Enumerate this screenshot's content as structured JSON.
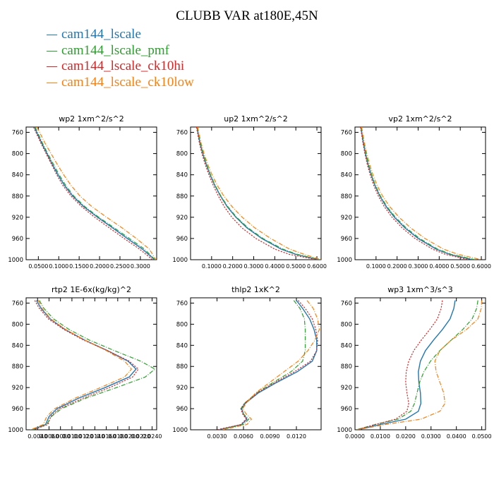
{
  "figure_title": "CLUBB VAR at180E,45N",
  "legend": [
    {
      "label": "cam144_lscale",
      "color": "#1f77b4"
    },
    {
      "label": "cam144_lscale_pmf",
      "color": "#2ca02c"
    },
    {
      "label": "cam144_lscale_ck10hi",
      "color": "#d62728"
    },
    {
      "label": "cam144_lscale_ck10low",
      "color": "#ff7f0e"
    }
  ],
  "chart_data": [
    {
      "type": "line",
      "title": "wp2  1xm^2/s^2",
      "xlim": [
        0.02,
        0.34
      ],
      "ylim": [
        1000,
        750
      ],
      "y_reversed": true,
      "x_ticks": [
        0.05,
        0.1,
        0.15,
        0.2,
        0.25,
        0.3
      ],
      "x_tick_labels": [
        "0.0500",
        "0.1000",
        "0.1500",
        "0.2000",
        "0.2500",
        "0.3000"
      ],
      "y_ticks": [
        760,
        800,
        840,
        880,
        920,
        960,
        1000
      ],
      "y_tick_labels": [
        "760",
        "800",
        "840",
        "880",
        "920",
        "960",
        "1000"
      ],
      "y": [
        750,
        760,
        780,
        800,
        820,
        840,
        860,
        880,
        900,
        920,
        940,
        960,
        980,
        1000
      ],
      "series": [
        {
          "name": "cam144_lscale",
          "x": [
            0.04,
            0.046,
            0.058,
            0.071,
            0.084,
            0.098,
            0.114,
            0.134,
            0.161,
            0.195,
            0.232,
            0.268,
            0.305,
            0.335
          ]
        },
        {
          "name": "cam144_lscale_pmf",
          "x": [
            0.042,
            0.048,
            0.06,
            0.073,
            0.087,
            0.101,
            0.117,
            0.137,
            0.164,
            0.198,
            0.236,
            0.273,
            0.31,
            0.336
          ]
        },
        {
          "name": "cam144_lscale_ck10hi",
          "x": [
            0.038,
            0.044,
            0.056,
            0.069,
            0.082,
            0.095,
            0.11,
            0.13,
            0.156,
            0.188,
            0.224,
            0.26,
            0.298,
            0.33
          ]
        },
        {
          "name": "cam144_lscale_ck10low",
          "x": [
            0.046,
            0.053,
            0.066,
            0.081,
            0.096,
            0.112,
            0.13,
            0.152,
            0.181,
            0.217,
            0.255,
            0.29,
            0.322,
            0.338
          ]
        }
      ]
    },
    {
      "type": "line",
      "title": "up2  1xm^2/s^2",
      "xlim": [
        0.0,
        0.62
      ],
      "ylim": [
        1000,
        750
      ],
      "y_reversed": true,
      "x_ticks": [
        0.1,
        0.2,
        0.3,
        0.4,
        0.5,
        0.6
      ],
      "x_tick_labels": [
        "0.1000",
        "0.2000",
        "0.3000",
        "0.4000",
        "0.5000",
        "0.6000"
      ],
      "y_ticks": [
        760,
        800,
        840,
        880,
        920,
        960,
        1000
      ],
      "y_tick_labels": [
        "760",
        "800",
        "840",
        "880",
        "920",
        "960",
        "1000"
      ],
      "y": [
        750,
        760,
        780,
        800,
        820,
        840,
        860,
        880,
        900,
        920,
        940,
        960,
        980,
        990,
        1000
      ],
      "series": [
        {
          "name": "cam144_lscale",
          "x": [
            0.03,
            0.035,
            0.045,
            0.058,
            0.074,
            0.093,
            0.115,
            0.142,
            0.174,
            0.215,
            0.268,
            0.338,
            0.43,
            0.5,
            0.61
          ]
        },
        {
          "name": "cam144_lscale_pmf",
          "x": [
            0.032,
            0.037,
            0.047,
            0.06,
            0.076,
            0.095,
            0.117,
            0.144,
            0.177,
            0.219,
            0.273,
            0.344,
            0.438,
            0.508,
            0.615
          ]
        },
        {
          "name": "cam144_lscale_ck10hi",
          "x": [
            0.028,
            0.033,
            0.042,
            0.054,
            0.069,
            0.087,
            0.108,
            0.132,
            0.16,
            0.196,
            0.244,
            0.31,
            0.4,
            0.47,
            0.6
          ]
        },
        {
          "name": "cam144_lscale_ck10low",
          "x": [
            0.034,
            0.039,
            0.05,
            0.064,
            0.081,
            0.102,
            0.127,
            0.158,
            0.197,
            0.245,
            0.305,
            0.38,
            0.47,
            0.54,
            0.62
          ]
        }
      ]
    },
    {
      "type": "line",
      "title": "vp2  1xm^2/s^2",
      "xlim": [
        0.0,
        0.62
      ],
      "ylim": [
        1000,
        750
      ],
      "y_reversed": true,
      "x_ticks": [
        0.1,
        0.2,
        0.3,
        0.4,
        0.5,
        0.6
      ],
      "x_tick_labels": [
        "0.1000",
        "0.2000",
        "0.3000",
        "0.4000",
        "0.5000",
        "0.6000"
      ],
      "y_ticks": [
        760,
        800,
        840,
        880,
        920,
        960,
        1000
      ],
      "y_tick_labels": [
        "760",
        "800",
        "840",
        "880",
        "920",
        "960",
        "1000"
      ],
      "y": [
        750,
        760,
        780,
        800,
        820,
        840,
        860,
        880,
        900,
        920,
        940,
        960,
        980,
        990,
        1000
      ],
      "series": [
        {
          "name": "cam144_lscale",
          "x": [
            0.028,
            0.032,
            0.04,
            0.05,
            0.062,
            0.077,
            0.095,
            0.118,
            0.148,
            0.187,
            0.237,
            0.3,
            0.385,
            0.45,
            0.56
          ]
        },
        {
          "name": "cam144_lscale_pmf",
          "x": [
            0.03,
            0.034,
            0.042,
            0.052,
            0.064,
            0.079,
            0.097,
            0.121,
            0.152,
            0.192,
            0.243,
            0.307,
            0.392,
            0.458,
            0.57
          ]
        },
        {
          "name": "cam144_lscale_ck10hi",
          "x": [
            0.026,
            0.03,
            0.038,
            0.047,
            0.058,
            0.072,
            0.089,
            0.111,
            0.139,
            0.176,
            0.224,
            0.285,
            0.368,
            0.43,
            0.54
          ]
        },
        {
          "name": "cam144_lscale_ck10low",
          "x": [
            0.032,
            0.036,
            0.045,
            0.056,
            0.069,
            0.085,
            0.105,
            0.131,
            0.165,
            0.209,
            0.264,
            0.332,
            0.42,
            0.49,
            0.6
          ]
        }
      ]
    },
    {
      "type": "line",
      "title": "rtp2  1E-6x(kg/kg)^2",
      "xlim": [
        0.002,
        0.0248
      ],
      "ylim": [
        1000,
        750
      ],
      "y_reversed": true,
      "x_ticks": [
        0.004,
        0.006,
        0.008,
        0.01,
        0.012,
        0.014,
        0.016,
        0.018,
        0.02,
        0.022,
        0.024
      ],
      "x_tick_labels": [
        "0.0040",
        "0.0060",
        "0.0080",
        "0.0100",
        "0.0120",
        "0.0140",
        "0.0160",
        "0.0180",
        "0.0200",
        "0.0220",
        "0.0240"
      ],
      "y_ticks": [
        760,
        800,
        840,
        880,
        920,
        960,
        1000
      ],
      "y_tick_labels": [
        "760",
        "800",
        "840",
        "880",
        "920",
        "960",
        "1000"
      ],
      "y": [
        755,
        770,
        790,
        810,
        830,
        850,
        870,
        885,
        900,
        920,
        940,
        960,
        975,
        990,
        1000
      ],
      "series": [
        {
          "name": "cam144_lscale",
          "x": [
            0.0038,
            0.0046,
            0.0062,
            0.0088,
            0.0122,
            0.0162,
            0.0198,
            0.0212,
            0.02,
            0.0158,
            0.0112,
            0.0074,
            0.006,
            0.0054,
            0.003
          ]
        },
        {
          "name": "cam144_lscale_pmf",
          "x": [
            0.0043,
            0.0051,
            0.0068,
            0.0095,
            0.013,
            0.0174,
            0.022,
            0.0245,
            0.0228,
            0.0178,
            0.0125,
            0.0082,
            0.0064,
            0.0056,
            0.0032
          ]
        },
        {
          "name": "cam144_lscale_ck10hi",
          "x": [
            0.0035,
            0.0043,
            0.0059,
            0.0086,
            0.012,
            0.0162,
            0.02,
            0.0216,
            0.0206,
            0.0166,
            0.012,
            0.0078,
            0.0063,
            0.0058,
            0.0033
          ]
        },
        {
          "name": "cam144_lscale_ck10low",
          "x": [
            0.0041,
            0.0048,
            0.0063,
            0.0089,
            0.0122,
            0.016,
            0.0192,
            0.0204,
            0.0192,
            0.015,
            0.0106,
            0.007,
            0.0056,
            0.005,
            0.0028
          ]
        }
      ]
    },
    {
      "type": "line",
      "title": "thlp2  1xK^2",
      "xlim": [
        0.0,
        0.0148
      ],
      "ylim": [
        1000,
        750
      ],
      "y_reversed": true,
      "x_ticks": [
        0.003,
        0.006,
        0.009,
        0.012
      ],
      "x_tick_labels": [
        "0.0030",
        "0.0060",
        "0.0090",
        "0.0120"
      ],
      "y_ticks": [
        760,
        800,
        840,
        880,
        920,
        960,
        1000
      ],
      "y_tick_labels": [
        "760",
        "800",
        "840",
        "880",
        "920",
        "960",
        "1000"
      ],
      "y": [
        755,
        770,
        790,
        810,
        830,
        850,
        870,
        890,
        910,
        930,
        950,
        960,
        970,
        980,
        990,
        1000
      ],
      "series": [
        {
          "name": "cam144_lscale",
          "x": [
            0.012,
            0.0127,
            0.0135,
            0.014,
            0.0143,
            0.0143,
            0.0138,
            0.0121,
            0.0098,
            0.0077,
            0.0062,
            0.0058,
            0.006,
            0.0064,
            0.0058,
            0.0032
          ]
        },
        {
          "name": "cam144_lscale_pmf",
          "x": [
            0.0117,
            0.0124,
            0.0129,
            0.013,
            0.013,
            0.013,
            0.0127,
            0.0114,
            0.0094,
            0.0075,
            0.0061,
            0.0057,
            0.006,
            0.0066,
            0.006,
            0.0034
          ]
        },
        {
          "name": "cam144_lscale_ck10hi",
          "x": [
            0.0122,
            0.013,
            0.0138,
            0.0142,
            0.0144,
            0.0143,
            0.0136,
            0.0118,
            0.0096,
            0.0076,
            0.0061,
            0.0057,
            0.0059,
            0.0063,
            0.0057,
            0.003
          ]
        },
        {
          "name": "cam144_lscale_ck10low",
          "x": [
            0.0132,
            0.0139,
            0.0144,
            0.0146,
            0.0141,
            0.0133,
            0.0122,
            0.0106,
            0.009,
            0.0074,
            0.0063,
            0.0059,
            0.0063,
            0.0069,
            0.0064,
            0.0036
          ]
        }
      ]
    },
    {
      "type": "line",
      "title": "wp3  1xm^3/s^3",
      "xlim": [
        0.0,
        0.0515
      ],
      "ylim": [
        1000,
        750
      ],
      "y_reversed": true,
      "x_ticks": [
        0.0,
        0.01,
        0.02,
        0.03,
        0.04,
        0.05
      ],
      "x_tick_labels": [
        "0.0000",
        "0.0100",
        "0.0200",
        "0.0300",
        "0.0400",
        "0.0500"
      ],
      "y_ticks": [
        760,
        800,
        840,
        880,
        920,
        960,
        1000
      ],
      "y_tick_labels": [
        "760",
        "800",
        "840",
        "880",
        "920",
        "960",
        "1000"
      ],
      "y": [
        755,
        770,
        790,
        810,
        830,
        850,
        870,
        890,
        910,
        930,
        950,
        965,
        980,
        990,
        1000
      ],
      "series": [
        {
          "name": "cam144_lscale",
          "x": [
            0.0395,
            0.039,
            0.0375,
            0.0345,
            0.031,
            0.0278,
            0.0258,
            0.025,
            0.0252,
            0.0258,
            0.026,
            0.025,
            0.02,
            0.01,
            0.001
          ]
        },
        {
          "name": "cam144_lscale_pmf",
          "x": [
            0.0485,
            0.048,
            0.0462,
            0.0425,
            0.038,
            0.0335,
            0.0298,
            0.0272,
            0.0255,
            0.0245,
            0.0235,
            0.022,
            0.017,
            0.008,
            0.0005
          ]
        },
        {
          "name": "cam144_lscale_ck10hi",
          "x": [
            0.0345,
            0.034,
            0.0325,
            0.0295,
            0.0262,
            0.0232,
            0.0212,
            0.0202,
            0.02,
            0.0205,
            0.0212,
            0.0205,
            0.016,
            0.008,
            0.0008
          ]
        },
        {
          "name": "cam144_lscale_ck10low",
          "x": [
            0.05,
            0.0498,
            0.0485,
            0.044,
            0.038,
            0.0335,
            0.0315,
            0.032,
            0.0335,
            0.035,
            0.0355,
            0.0335,
            0.026,
            0.012,
            0.001
          ]
        }
      ]
    }
  ]
}
